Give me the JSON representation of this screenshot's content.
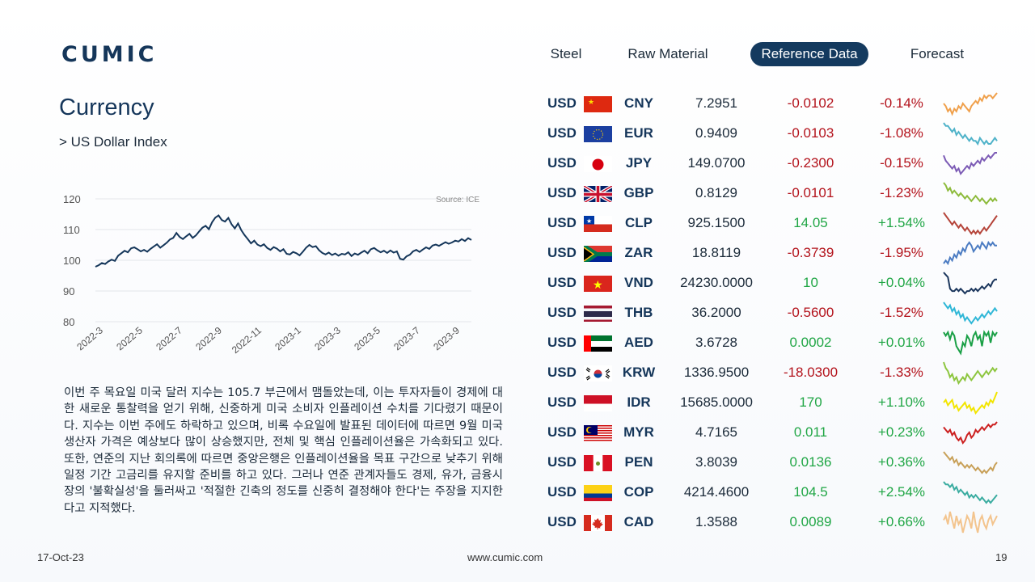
{
  "brand": "CUMIC",
  "nav": [
    {
      "label": "Steel",
      "active": false
    },
    {
      "label": "Raw Material",
      "active": false
    },
    {
      "label": "Reference Data",
      "active": true
    },
    {
      "label": "Forecast",
      "active": false
    }
  ],
  "page_title": "Currency",
  "subtitle": "> US Dollar Index",
  "chart_data": {
    "type": "line",
    "source": "Source: ICE",
    "ylim": [
      80,
      120
    ],
    "yticks": [
      120,
      110,
      100,
      90,
      80
    ],
    "xticks": [
      "2022-3",
      "2022-5",
      "2022-7",
      "2022-9",
      "2022-11",
      "2023-1",
      "2023-3",
      "2023-5",
      "2023-7",
      "2023-9"
    ],
    "series": [
      {
        "name": "",
        "values": [
          97.9,
          98.4,
          99.1,
          98.8,
          99.6,
          100.2,
          99.8,
          101.5,
          102.3,
          103.1,
          102.6,
          103.9,
          104.2,
          103.6,
          102.9,
          103.4,
          102.8,
          103.7,
          104.5,
          105.2,
          104.1,
          104.9,
          105.7,
          106.8,
          107.3,
          108.9,
          107.6,
          106.9,
          107.8,
          108.6,
          107.3,
          108.1,
          109.4,
          110.6,
          111.2,
          110.1,
          112.4,
          113.9,
          114.6,
          113.1,
          112.6,
          113.8,
          111.7,
          110.4,
          112.0,
          109.8,
          108.2,
          106.9,
          105.5,
          106.4,
          105.1,
          104.6,
          105.2,
          104.0,
          103.4,
          104.3,
          103.8,
          102.9,
          103.6,
          102.1,
          101.9,
          102.7,
          102.3,
          101.6,
          102.8,
          104.1,
          105.0,
          104.3,
          104.6,
          103.3,
          102.4,
          101.9,
          102.5,
          101.7,
          102.2,
          101.5,
          102.1,
          101.9,
          102.6,
          101.4,
          102.2,
          101.8,
          102.5,
          103.1,
          102.3,
          103.6,
          104.0,
          103.2,
          102.6,
          103.1,
          102.4,
          103.2,
          102.5,
          102.9,
          100.5,
          100.2,
          101.3,
          101.8,
          102.9,
          103.4,
          102.7,
          103.5,
          104.2,
          103.7,
          104.8,
          105.1,
          104.7,
          105.3,
          105.9,
          105.4,
          105.8,
          106.4,
          106.1,
          106.9,
          106.3,
          107.2,
          106.6
        ]
      }
    ]
  },
  "paragraph": "이번 주 목요일 미국 달러 지수는 105.7 부근에서 맴돌았는데, 이는 투자자들이 경제에 대한 새로운 통찰력을 얻기 위해, 신중하게 미국 소비자 인플레이션 수치를 기다렸기 때문이다. 지수는 이번 주에도 하락하고 있으며, 비록 수요일에 발표된 데이터에 따르면 9월 미국 생산자 가격은 예상보다 많이 상승했지만, 전체 및 핵심 인플레이션율은 가속화되고 있다. 또한, 연준의 지난 회의록에 따르면 중앙은행은 인플레이션율을 목표 구간으로 낮추기 위해 일정 기간 고금리를 유지할 준비를 하고 있다. 그러나 연준 관계자들도 경제, 유가, 금융시장의 '불확실성'을 둘러싸고 '적절한 긴축의 정도를 신중히 결정해야 한다'는 주장을 지지한다고 지적했다.",
  "footer": {
    "date": "17-Oct-23",
    "url": "www.cumic.com",
    "page": "19"
  },
  "currencies": [
    {
      "base": "USD",
      "flag": "china-flag-icon",
      "code": "CNY",
      "rate": "7.2951",
      "change": "-0.0102",
      "pct": "-0.14%",
      "dir": "neg",
      "spark_color": "#f0a04b",
      "spark": [
        6,
        5,
        3,
        4,
        2,
        4,
        3,
        5,
        4,
        6,
        5,
        4,
        3,
        5,
        6,
        7,
        6,
        8,
        7,
        9,
        8,
        9,
        9,
        8,
        9,
        10
      ]
    },
    {
      "base": "USD",
      "flag": "eu-flag-icon",
      "code": "EUR",
      "rate": "0.9409",
      "change": "-0.0103",
      "pct": "-1.08%",
      "dir": "neg",
      "spark_color": "#4fb3c9",
      "spark": [
        9,
        8,
        8,
        7,
        6,
        7,
        5,
        6,
        5,
        4,
        5,
        4,
        3,
        4,
        3,
        3,
        2,
        4,
        3,
        2,
        3,
        2,
        2,
        3,
        4,
        3
      ]
    },
    {
      "base": "USD",
      "flag": "japan-flag-icon",
      "code": "JPY",
      "rate": "149.0700",
      "change": "-0.2300",
      "pct": "-0.15%",
      "dir": "neg",
      "spark_color": "#7c5bb5",
      "spark": [
        8,
        6,
        5,
        4,
        3,
        4,
        2,
        3,
        1,
        2,
        3,
        4,
        3,
        5,
        4,
        5,
        6,
        5,
        7,
        6,
        7,
        8,
        7,
        8,
        9,
        9
      ]
    },
    {
      "base": "USD",
      "flag": "uk-flag-icon",
      "code": "GBP",
      "rate": "0.8129",
      "change": "-0.0101",
      "pct": "-1.23%",
      "dir": "neg",
      "spark_color": "#8dbb3c",
      "spark": [
        9,
        8,
        6,
        7,
        5,
        6,
        5,
        4,
        5,
        4,
        3,
        4,
        3,
        2,
        3,
        4,
        3,
        2,
        3,
        2,
        1,
        2,
        3,
        2,
        3,
        2
      ]
    },
    {
      "base": "USD",
      "flag": "chile-flag-icon",
      "code": "CLP",
      "rate": "925.1500",
      "change": "14.05",
      "pct": "+1.54%",
      "dir": "pos",
      "spark_color": "#b5443a",
      "spark": [
        8,
        7,
        6,
        5,
        4,
        5,
        4,
        3,
        4,
        3,
        2,
        3,
        2,
        1,
        2,
        1,
        2,
        1,
        2,
        3,
        2,
        3,
        4,
        5,
        6,
        7
      ]
    },
    {
      "base": "USD",
      "flag": "south-africa-flag-icon",
      "code": "ZAR",
      "rate": "18.8119",
      "change": "-0.3739",
      "pct": "-1.95%",
      "dir": "neg",
      "spark_color": "#4b7bc2",
      "spark": [
        2,
        3,
        2,
        4,
        3,
        5,
        4,
        6,
        5,
        7,
        6,
        8,
        9,
        8,
        6,
        7,
        8,
        7,
        9,
        8,
        7,
        9,
        8,
        9,
        8,
        8
      ]
    },
    {
      "base": "USD",
      "flag": "vietnam-flag-icon",
      "code": "VND",
      "rate": "24230.0000",
      "change": "10",
      "pct": "+0.04%",
      "dir": "pos",
      "spark_color": "#1b365d",
      "spark": [
        10,
        9,
        8,
        3,
        2,
        2,
        3,
        2,
        3,
        2,
        1,
        2,
        2,
        3,
        2,
        3,
        2,
        3,
        4,
        3,
        4,
        5,
        4,
        6,
        7,
        7
      ]
    },
    {
      "base": "USD",
      "flag": "thailand-flag-icon",
      "code": "THB",
      "rate": "36.2000",
      "change": "-0.5600",
      "pct": "-1.52%",
      "dir": "neg",
      "spark_color": "#2fb7d7",
      "spark": [
        9,
        8,
        7,
        8,
        6,
        7,
        5,
        6,
        4,
        5,
        3,
        4,
        3,
        2,
        3,
        4,
        3,
        4,
        5,
        4,
        5,
        6,
        5,
        6,
        7,
        6
      ]
    },
    {
      "base": "USD",
      "flag": "uae-flag-icon",
      "code": "AED",
      "rate": "3.6728",
      "change": "0.0002",
      "pct": "+0.01%",
      "dir": "pos",
      "spark_color": "#1aa046",
      "spark": [
        7,
        6,
        7,
        5,
        7,
        6,
        3,
        2,
        1,
        4,
        3,
        6,
        5,
        3,
        6,
        7,
        5,
        6,
        3,
        7,
        6,
        7,
        4,
        7,
        6,
        7
      ]
    },
    {
      "base": "USD",
      "flag": "korea-flag-icon",
      "code": "KRW",
      "rate": "1336.9500",
      "change": "-18.0300",
      "pct": "-1.33%",
      "dir": "neg",
      "spark_color": "#8dc63f",
      "spark": [
        9,
        7,
        6,
        4,
        5,
        3,
        4,
        2,
        3,
        4,
        3,
        5,
        4,
        3,
        4,
        5,
        6,
        5,
        4,
        5,
        6,
        5,
        6,
        7,
        6,
        7
      ]
    },
    {
      "base": "USD",
      "flag": "indonesia-flag-icon",
      "code": "IDR",
      "rate": "15685.0000",
      "change": "170",
      "pct": "+1.10%",
      "dir": "pos",
      "spark_color": "#f2e500",
      "spark": [
        5,
        6,
        4,
        5,
        6,
        3,
        4,
        2,
        3,
        4,
        5,
        3,
        4,
        2,
        3,
        1,
        2,
        3,
        4,
        3,
        5,
        4,
        6,
        5,
        7,
        9
      ]
    },
    {
      "base": "USD",
      "flag": "malaysia-flag-icon",
      "code": "MYR",
      "rate": "4.7165",
      "change": "0.011",
      "pct": "+0.23%",
      "dir": "pos",
      "spark_color": "#cc1f1f",
      "spark": [
        7,
        6,
        5,
        6,
        4,
        5,
        3,
        2,
        3,
        1,
        2,
        4,
        5,
        3,
        4,
        6,
        5,
        6,
        7,
        6,
        7,
        8,
        7,
        8,
        8,
        9
      ]
    },
    {
      "base": "USD",
      "flag": "peru-flag-icon",
      "code": "PEN",
      "rate": "3.8039",
      "change": "0.0136",
      "pct": "+0.36%",
      "dir": "pos",
      "spark_color": "#c8a058",
      "spark": [
        9,
        8,
        7,
        6,
        7,
        5,
        6,
        4,
        5,
        4,
        3,
        4,
        3,
        4,
        3,
        2,
        3,
        2,
        1,
        2,
        1,
        2,
        3,
        2,
        4,
        5
      ]
    },
    {
      "base": "USD",
      "flag": "colombia-flag-icon",
      "code": "COP",
      "rate": "4214.4600",
      "change": "104.5",
      "pct": "+2.54%",
      "dir": "pos",
      "spark_color": "#3aaca0",
      "spark": [
        9,
        8,
        8,
        7,
        8,
        6,
        7,
        5,
        6,
        5,
        4,
        5,
        3,
        4,
        3,
        4,
        3,
        2,
        3,
        2,
        1,
        2,
        1,
        2,
        3,
        4
      ]
    },
    {
      "base": "USD",
      "flag": "canada-flag-icon",
      "code": "CAD",
      "rate": "1.3588",
      "change": "0.0089",
      "pct": "+0.66%",
      "dir": "pos",
      "spark_color": "#f3c48d",
      "spark": [
        6,
        7,
        5,
        8,
        6,
        4,
        7,
        5,
        6,
        3,
        5,
        7,
        6,
        4,
        8,
        5,
        3,
        6,
        7,
        5,
        4,
        6,
        7,
        5,
        6,
        7
      ]
    }
  ]
}
